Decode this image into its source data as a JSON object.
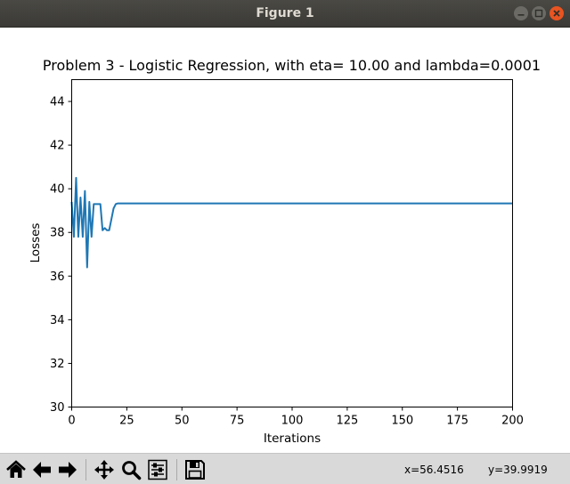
{
  "window": {
    "title": "Figure 1"
  },
  "status": {
    "x_readout": "x=56.4516",
    "y_readout": "y=39.9919"
  },
  "chart_data": {
    "type": "line",
    "title": "Problem 3 - Logistic Regression, with eta= 10.00 and lambda=0.0001",
    "xlabel": "Iterations",
    "ylabel": "Losses",
    "xlim": [
      0,
      200
    ],
    "ylim": [
      30,
      45
    ],
    "xticks": [
      0,
      25,
      50,
      75,
      100,
      125,
      150,
      175,
      200
    ],
    "yticks": [
      30,
      32,
      34,
      36,
      38,
      40,
      42,
      44
    ],
    "grid": false,
    "color": "#1f77b4",
    "series": [
      {
        "x": [
          0,
          1,
          2,
          3,
          4,
          5,
          6,
          7,
          8,
          9,
          10,
          11,
          12,
          13,
          14,
          15,
          16,
          17,
          18,
          19,
          20,
          21,
          22,
          25,
          50,
          100,
          150,
          200
        ],
        "values": [
          39.4,
          37.8,
          40.5,
          37.8,
          39.6,
          37.8,
          39.9,
          36.4,
          39.4,
          37.8,
          39.3,
          39.3,
          39.3,
          39.3,
          38.1,
          38.2,
          38.1,
          38.1,
          38.6,
          39.1,
          39.3,
          39.33,
          39.33,
          39.33,
          39.33,
          39.33,
          39.33,
          39.33
        ]
      }
    ]
  }
}
